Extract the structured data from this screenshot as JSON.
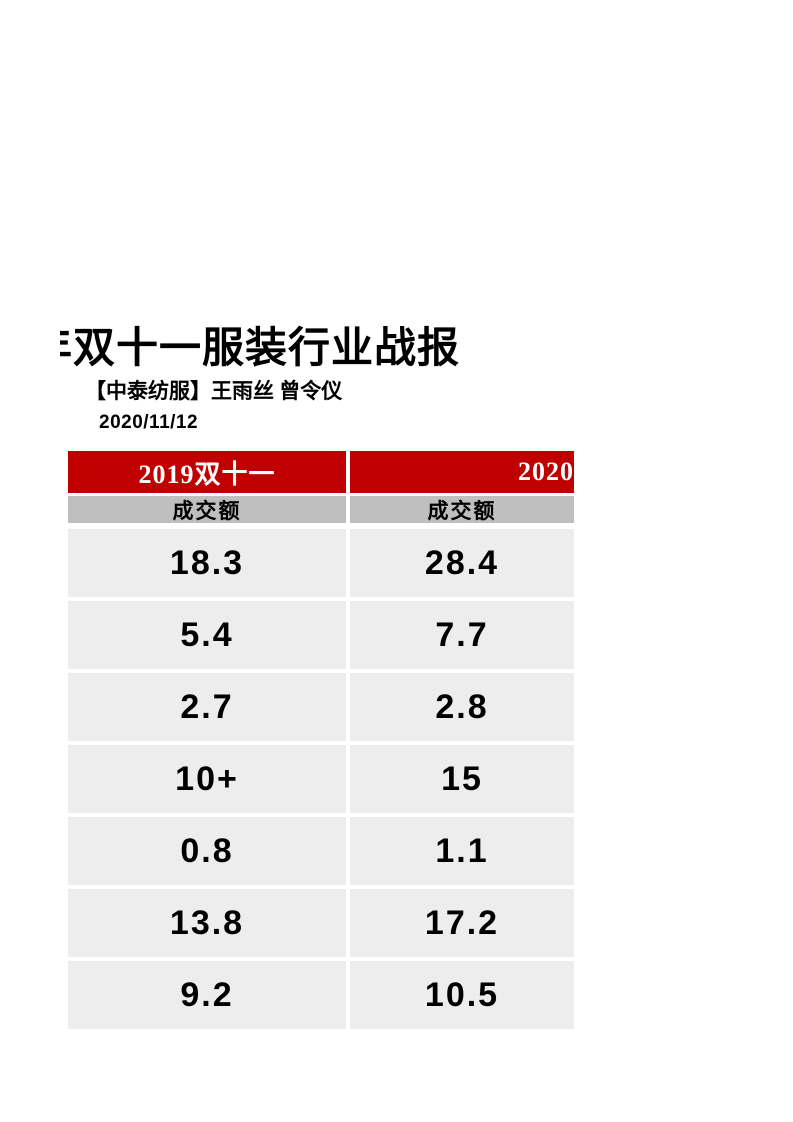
{
  "page": {
    "background": "#ffffff"
  },
  "header": {
    "title_clipped_prefix": "年",
    "title": "双十一服装行业战报",
    "subtitle": "【中泰纺服】王雨丝 曾令仪",
    "date": "2020/11/12"
  },
  "table": {
    "colors": {
      "header_bg": "#C00000",
      "header_text": "#FFFFFF",
      "subheader_bg": "#BFBFBF",
      "row_bg": "#EDEDED",
      "value_text": "#000000"
    },
    "columns": [
      {
        "header": "2019双十一",
        "subheader": "成交额"
      },
      {
        "header": "2020",
        "header_clipped_at_right_edge": true,
        "subheader": "成交额"
      }
    ],
    "rows": [
      {
        "y2019": "18.3",
        "y2020": "28.4"
      },
      {
        "y2019": "5.4",
        "y2020": "7.7"
      },
      {
        "y2019": "2.7",
        "y2020": "2.8"
      },
      {
        "y2019": "10+",
        "y2020": "15"
      },
      {
        "y2019": "0.8",
        "y2020": "1.1"
      },
      {
        "y2019": "13.8",
        "y2020": "17.2"
      },
      {
        "y2019": "9.2",
        "y2020": "10.5"
      }
    ]
  }
}
